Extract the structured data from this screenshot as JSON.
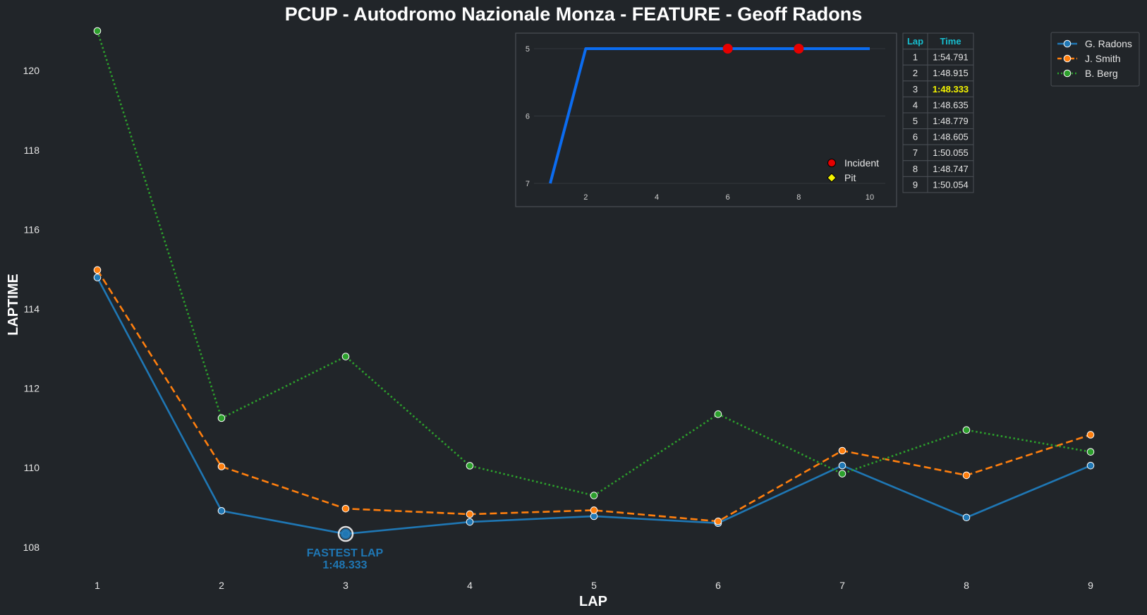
{
  "chart_data": {
    "type": "line",
    "title": "PCUP - Autodromo Nazionale Monza - FEATURE - Geoff Radons",
    "xlabel": "LAP",
    "ylabel": "LAPTIME",
    "x": [
      1,
      2,
      3,
      4,
      5,
      6,
      7,
      8,
      9
    ],
    "xlim": [
      0.5,
      9.5
    ],
    "ylim": [
      107.2,
      121.0
    ],
    "yticks": [
      108,
      110,
      112,
      114,
      116,
      118,
      120
    ],
    "grid": false,
    "legend_position": "top-right",
    "series": [
      {
        "name": "G. Radons",
        "color": "#1f77b4",
        "style": "solid",
        "values": [
          114.791,
          108.915,
          108.333,
          108.635,
          108.779,
          108.605,
          110.055,
          108.747,
          110.054
        ]
      },
      {
        "name": "J. Smith",
        "color": "#ff7f0e",
        "style": "dashed",
        "values": [
          114.98,
          110.03,
          108.97,
          108.83,
          108.93,
          108.65,
          110.43,
          109.81,
          110.83
        ]
      },
      {
        "name": "B. Berg",
        "color": "#2ca02c",
        "style": "dotted",
        "values": [
          121.0,
          111.25,
          112.8,
          110.05,
          109.3,
          111.35,
          109.85,
          110.95,
          110.4
        ]
      }
    ],
    "annotation": {
      "x": 3,
      "y": 108.333,
      "line1": "FASTEST LAP",
      "line2": "1:48.333"
    },
    "inset": {
      "type": "line",
      "x": [
        1,
        2,
        3,
        4,
        5,
        6,
        7,
        8,
        9,
        10
      ],
      "values": [
        7,
        5,
        5,
        5,
        5,
        5,
        5,
        5,
        5,
        5
      ],
      "xticks": [
        2,
        4,
        6,
        8,
        10
      ],
      "yticks": [
        5,
        6,
        7
      ],
      "xlim": [
        0.5,
        10.5
      ],
      "ylim": [
        7.0,
        4.8
      ],
      "inverted_y": true,
      "line_color": "#0b6cf0",
      "incidents": [
        6,
        8
      ],
      "incident_color": "#e60000",
      "pit_color": "#f5f500",
      "legend": [
        {
          "label": "Incident",
          "marker": "circle",
          "color": "#e60000"
        },
        {
          "label": "Pit",
          "marker": "diamond",
          "color": "#f5f500"
        }
      ]
    },
    "table": {
      "headers": [
        "Lap",
        "Time"
      ],
      "best_index": 2,
      "rows": [
        [
          "1",
          "1:54.791"
        ],
        [
          "2",
          "1:48.915"
        ],
        [
          "3",
          "1:48.333"
        ],
        [
          "4",
          "1:48.635"
        ],
        [
          "5",
          "1:48.779"
        ],
        [
          "6",
          "1:48.605"
        ],
        [
          "7",
          "1:50.055"
        ],
        [
          "8",
          "1:48.747"
        ],
        [
          "9",
          "1:50.054"
        ]
      ]
    }
  }
}
